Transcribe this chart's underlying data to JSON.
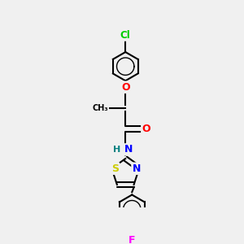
{
  "background_color": "#f0f0f0",
  "bond_color": "#000000",
  "atom_colors": {
    "Cl": "#00cc00",
    "O": "#ff0000",
    "N": "#0000ff",
    "H": "#008080",
    "S": "#cccc00",
    "F": "#ff00ff"
  },
  "figsize": [
    3.0,
    3.0
  ],
  "dpi": 100
}
